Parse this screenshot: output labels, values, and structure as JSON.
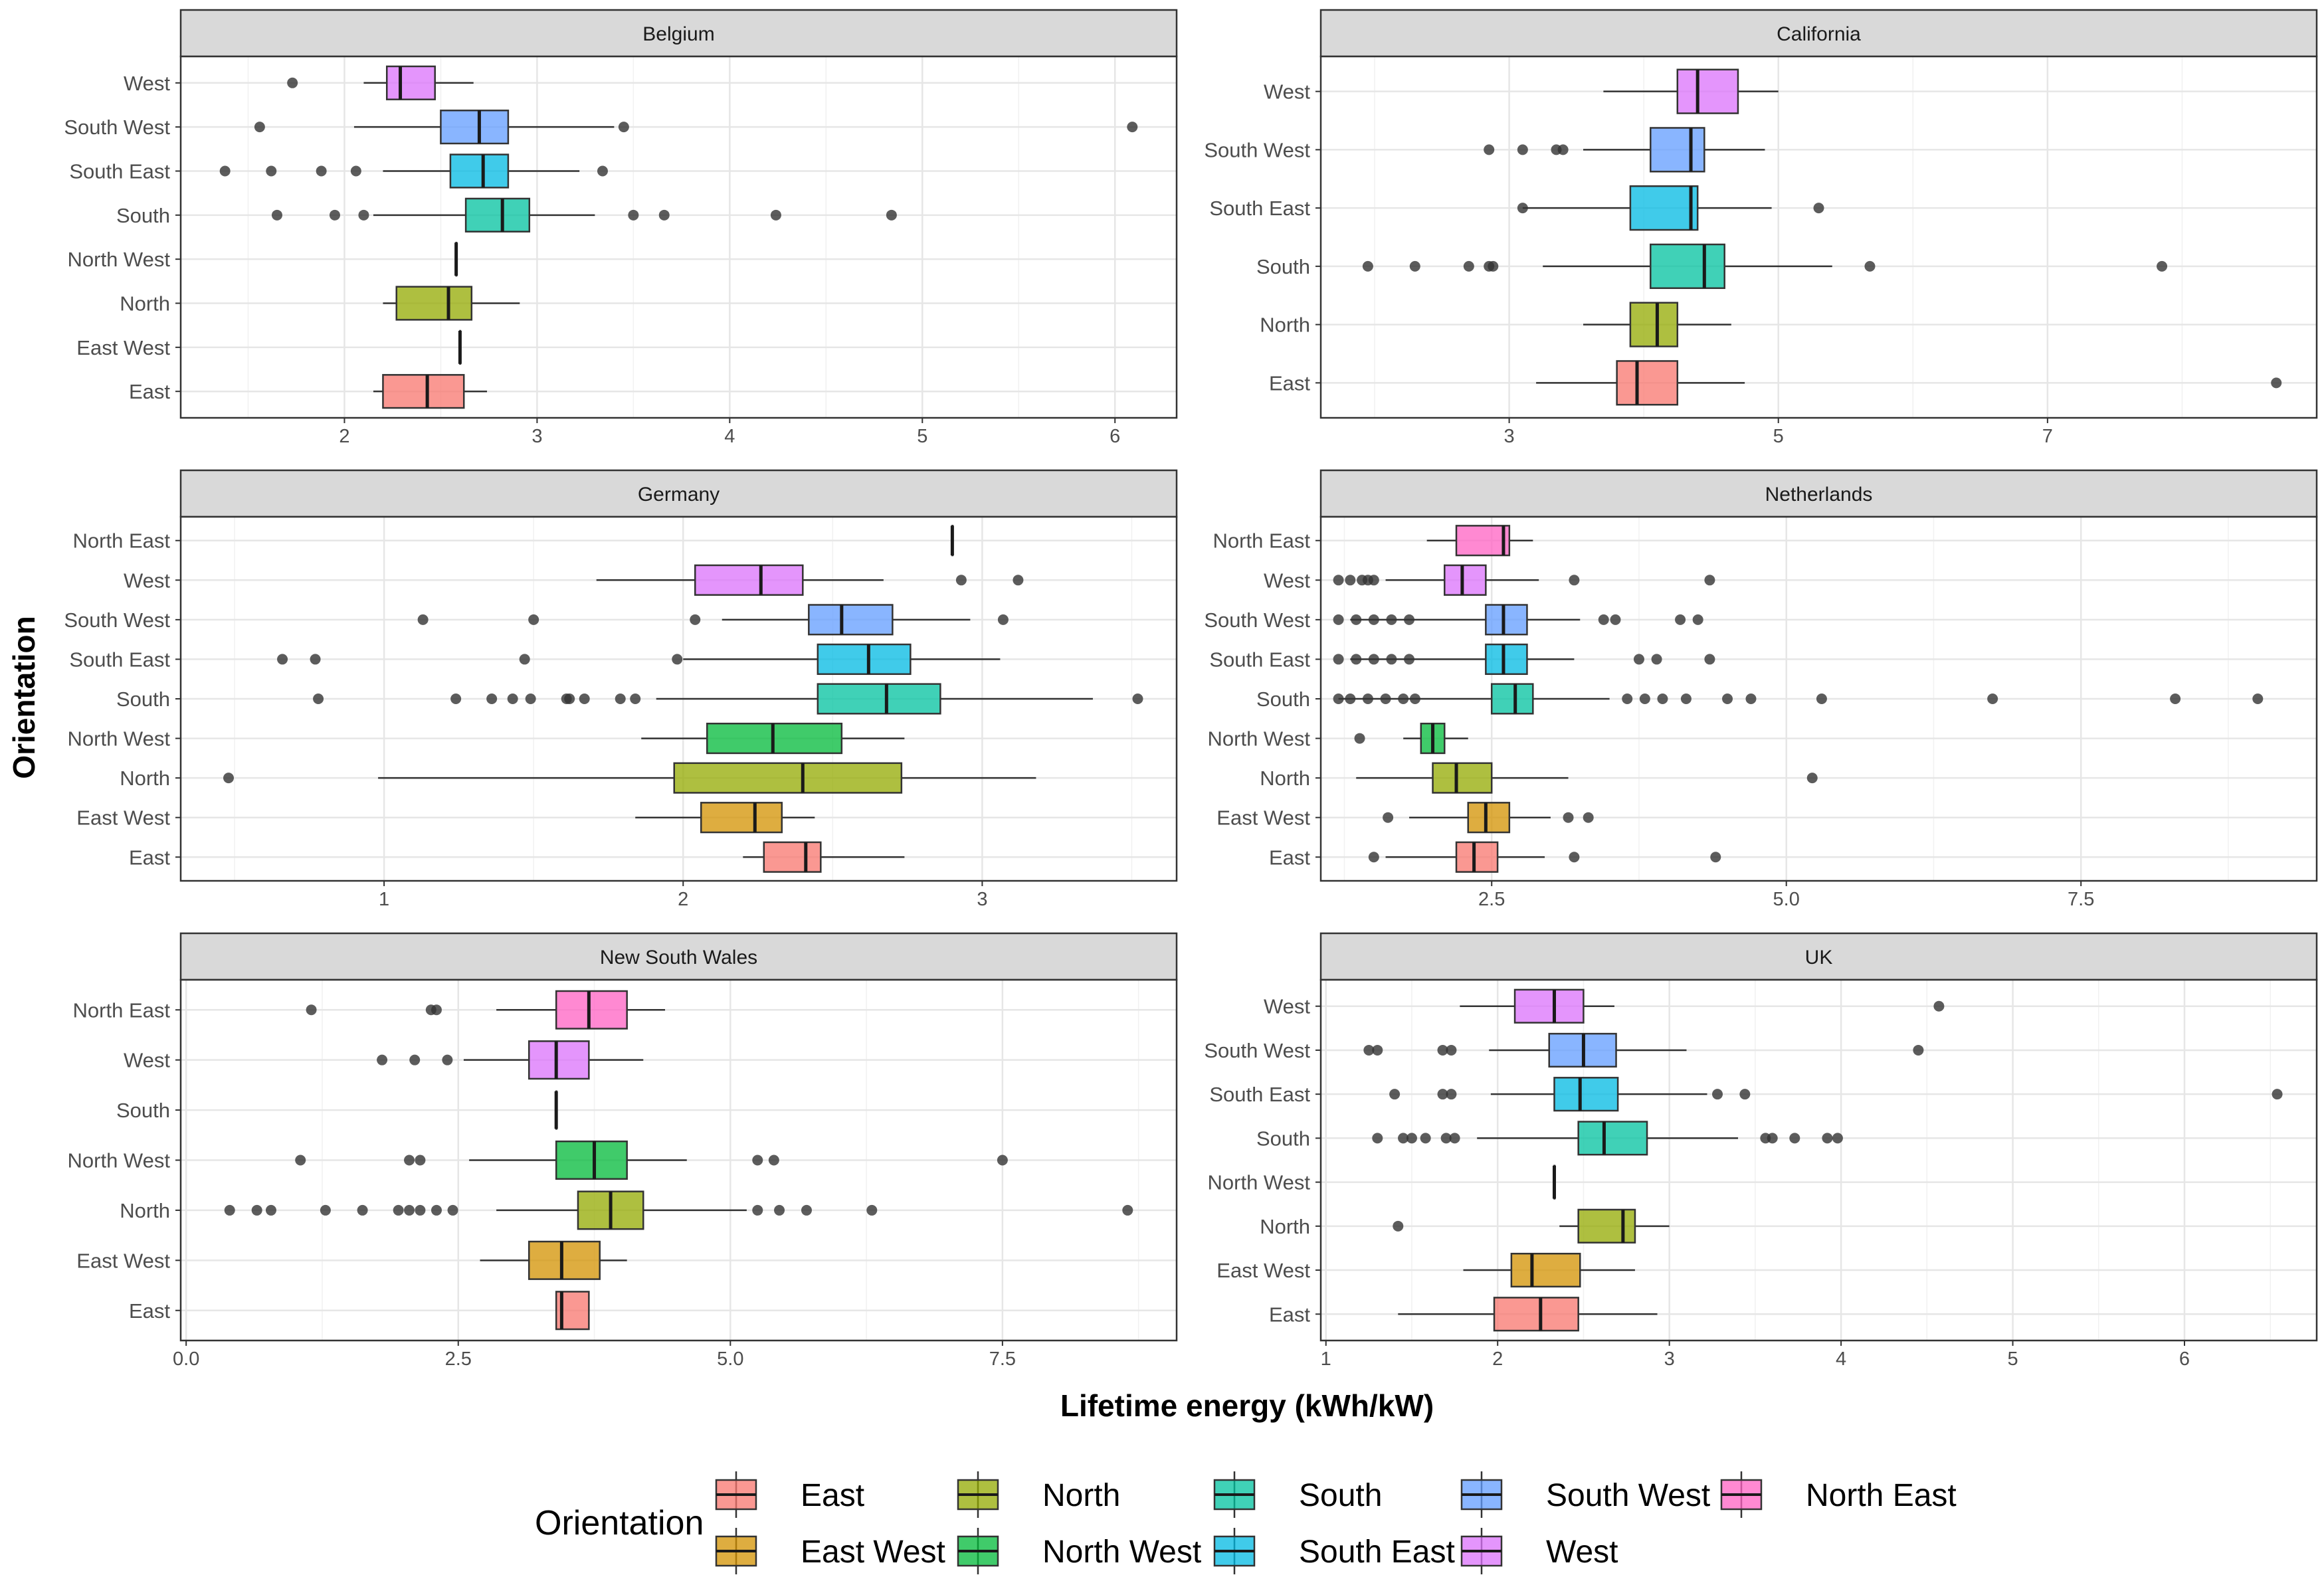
{
  "chart_data": {
    "type": "boxplot",
    "layout": "faceted horizontal boxplots, 3 rows x 2 columns, free x scales",
    "xlabel": "Lifetime energy (kWh/kW)",
    "ylabel": "Orientation",
    "grid": true,
    "legend": {
      "title": "Orientation",
      "placement": "bottom",
      "entries": [
        {
          "name": "East",
          "color": "#F8766D"
        },
        {
          "name": "East West",
          "color": "#D39200"
        },
        {
          "name": "North",
          "color": "#93AA00"
        },
        {
          "name": "North West",
          "color": "#00BA38"
        },
        {
          "name": "South",
          "color": "#00C19F"
        },
        {
          "name": "South East",
          "color": "#00B9E3"
        },
        {
          "name": "South West",
          "color": "#619CFF"
        },
        {
          "name": "West",
          "color": "#DB72FB"
        },
        {
          "name": "North East",
          "color": "#FF61C3"
        }
      ]
    },
    "panels": [
      {
        "title": "Belgium",
        "xlim": [
          1.15,
          6.32
        ],
        "xticks": [
          {
            "v": 2,
            "label": "2"
          },
          {
            "v": 3,
            "label": "3"
          },
          {
            "v": 4,
            "label": "4"
          },
          {
            "v": 5,
            "label": "5"
          },
          {
            "v": 6,
            "label": "6"
          }
        ],
        "boxes": [
          {
            "category": "East",
            "whisker_low": 2.15,
            "q1": 2.2,
            "median": 2.43,
            "q3": 2.62,
            "whisker_high": 2.74,
            "outliers": []
          },
          {
            "category": "East West",
            "whisker_low": 2.6,
            "q1": 2.6,
            "median": 2.6,
            "q3": 2.6,
            "whisker_high": 2.6,
            "outliers": []
          },
          {
            "category": "North",
            "whisker_low": 2.2,
            "q1": 2.27,
            "median": 2.54,
            "q3": 2.66,
            "whisker_high": 2.91,
            "outliers": []
          },
          {
            "category": "North West",
            "whisker_low": 2.58,
            "q1": 2.58,
            "median": 2.58,
            "q3": 2.58,
            "whisker_high": 2.58,
            "outliers": []
          },
          {
            "category": "South",
            "whisker_low": 2.15,
            "q1": 2.63,
            "median": 2.82,
            "q3": 2.96,
            "whisker_high": 3.3,
            "outliers": [
              1.65,
              1.95,
              2.1,
              3.5,
              3.66,
              4.24,
              4.84
            ]
          },
          {
            "category": "South East",
            "whisker_low": 2.2,
            "q1": 2.55,
            "median": 2.72,
            "q3": 2.85,
            "whisker_high": 3.22,
            "outliers": [
              1.38,
              1.62,
              1.88,
              2.06,
              3.34
            ]
          },
          {
            "category": "South West",
            "whisker_low": 2.05,
            "q1": 2.5,
            "median": 2.7,
            "q3": 2.85,
            "whisker_high": 3.4,
            "outliers": [
              1.56,
              3.45,
              6.09
            ]
          },
          {
            "category": "West",
            "whisker_low": 2.1,
            "q1": 2.22,
            "median": 2.29,
            "q3": 2.47,
            "whisker_high": 2.67,
            "outliers": [
              1.73
            ]
          }
        ]
      },
      {
        "title": "California",
        "xlim": [
          1.6,
          9.0
        ],
        "xticks": [
          {
            "v": 3,
            "label": "3"
          },
          {
            "v": 5,
            "label": "5"
          },
          {
            "v": 7,
            "label": "7"
          }
        ],
        "boxes": [
          {
            "category": "East",
            "whisker_low": 3.2,
            "q1": 3.8,
            "median": 3.95,
            "q3": 4.25,
            "whisker_high": 4.75,
            "outliers": [
              8.7
            ]
          },
          {
            "category": "North",
            "whisker_low": 3.55,
            "q1": 3.9,
            "median": 4.1,
            "q3": 4.25,
            "whisker_high": 4.65,
            "outliers": []
          },
          {
            "category": "South",
            "whisker_low": 3.25,
            "q1": 4.05,
            "median": 4.45,
            "q3": 4.6,
            "whisker_high": 5.4,
            "outliers": [
              1.95,
              2.3,
              2.7,
              2.85,
              2.88,
              5.68,
              7.85
            ]
          },
          {
            "category": "South East",
            "whisker_low": 3.1,
            "q1": 3.9,
            "median": 4.35,
            "q3": 4.4,
            "whisker_high": 4.95,
            "outliers": [
              3.1,
              5.3
            ]
          },
          {
            "category": "South West",
            "whisker_low": 3.55,
            "q1": 4.05,
            "median": 4.35,
            "q3": 4.45,
            "whisker_high": 4.9,
            "outliers": [
              2.85,
              3.1,
              3.35,
              3.4
            ]
          },
          {
            "category": "West",
            "whisker_low": 3.7,
            "q1": 4.25,
            "median": 4.4,
            "q3": 4.7,
            "whisker_high": 5.0,
            "outliers": []
          }
        ]
      },
      {
        "title": "Germany",
        "xlim": [
          0.32,
          3.65
        ],
        "xticks": [
          {
            "v": 1,
            "label": "1"
          },
          {
            "v": 2,
            "label": "2"
          },
          {
            "v": 3,
            "label": "3"
          }
        ],
        "boxes": [
          {
            "category": "East",
            "whisker_low": 2.2,
            "q1": 2.27,
            "median": 2.41,
            "q3": 2.46,
            "whisker_high": 2.74,
            "outliers": []
          },
          {
            "category": "East West",
            "whisker_low": 1.84,
            "q1": 2.06,
            "median": 2.24,
            "q3": 2.33,
            "whisker_high": 2.44,
            "outliers": []
          },
          {
            "category": "North",
            "whisker_low": 0.98,
            "q1": 1.97,
            "median": 2.4,
            "q3": 2.73,
            "whisker_high": 3.18,
            "outliers": [
              0.48
            ]
          },
          {
            "category": "North West",
            "whisker_low": 1.86,
            "q1": 2.08,
            "median": 2.3,
            "q3": 2.53,
            "whisker_high": 2.74,
            "outliers": []
          },
          {
            "category": "South",
            "whisker_low": 1.91,
            "q1": 2.45,
            "median": 2.68,
            "q3": 2.86,
            "whisker_high": 3.37,
            "outliers": [
              0.78,
              1.24,
              1.36,
              1.43,
              1.49,
              1.61,
              1.62,
              1.67,
              1.79,
              1.84,
              3.52
            ]
          },
          {
            "category": "South East",
            "whisker_low": 2.0,
            "q1": 2.45,
            "median": 2.62,
            "q3": 2.76,
            "whisker_high": 3.06,
            "outliers": [
              0.66,
              0.77,
              1.47,
              1.98
            ]
          },
          {
            "category": "South West",
            "whisker_low": 2.13,
            "q1": 2.42,
            "median": 2.53,
            "q3": 2.7,
            "whisker_high": 2.96,
            "outliers": [
              1.13,
              1.5,
              2.04,
              3.07
            ]
          },
          {
            "category": "West",
            "whisker_low": 1.71,
            "q1": 2.04,
            "median": 2.26,
            "q3": 2.4,
            "whisker_high": 2.67,
            "outliers": [
              2.93,
              3.12
            ]
          },
          {
            "category": "North East",
            "whisker_low": 2.9,
            "q1": 2.9,
            "median": 2.9,
            "q3": 2.9,
            "whisker_high": 2.9,
            "outliers": []
          }
        ]
      },
      {
        "title": "Netherlands",
        "xlim": [
          1.05,
          9.5
        ],
        "xticks": [
          {
            "v": 2.5,
            "label": "2.5"
          },
          {
            "v": 5.0,
            "label": "5.0"
          },
          {
            "v": 7.5,
            "label": "7.5"
          }
        ],
        "boxes": [
          {
            "category": "East",
            "whisker_low": 1.6,
            "q1": 2.2,
            "median": 2.35,
            "q3": 2.55,
            "whisker_high": 2.95,
            "outliers": [
              1.5,
              3.2,
              4.4
            ]
          },
          {
            "category": "East West",
            "whisker_low": 1.8,
            "q1": 2.3,
            "median": 2.45,
            "q3": 2.65,
            "whisker_high": 3.0,
            "outliers": [
              1.62,
              3.15,
              3.32
            ]
          },
          {
            "category": "North",
            "whisker_low": 1.35,
            "q1": 2.0,
            "median": 2.2,
            "q3": 2.5,
            "whisker_high": 3.15,
            "outliers": [
              5.22
            ]
          },
          {
            "category": "North West",
            "whisker_low": 1.75,
            "q1": 1.9,
            "median": 2.0,
            "q3": 2.1,
            "whisker_high": 2.3,
            "outliers": [
              1.38
            ]
          },
          {
            "category": "South",
            "whisker_low": 1.2,
            "q1": 2.5,
            "median": 2.7,
            "q3": 2.85,
            "whisker_high": 3.5,
            "outliers": [
              1.2,
              1.3,
              1.45,
              1.6,
              1.75,
              1.85,
              3.65,
              3.8,
              3.95,
              4.15,
              4.5,
              4.7,
              5.3,
              6.75,
              8.3,
              9.0
            ]
          },
          {
            "category": "South East",
            "whisker_low": 1.3,
            "q1": 2.45,
            "median": 2.6,
            "q3": 2.8,
            "whisker_high": 3.2,
            "outliers": [
              1.2,
              1.35,
              1.5,
              1.65,
              1.8,
              3.75,
              3.9,
              4.35
            ]
          },
          {
            "category": "South West",
            "whisker_low": 1.3,
            "q1": 2.45,
            "median": 2.6,
            "q3": 2.8,
            "whisker_high": 3.25,
            "outliers": [
              1.2,
              1.35,
              1.5,
              1.65,
              1.8,
              3.45,
              3.55,
              4.1,
              4.25
            ]
          },
          {
            "category": "West",
            "whisker_low": 1.6,
            "q1": 2.1,
            "median": 2.25,
            "q3": 2.45,
            "whisker_high": 2.9,
            "outliers": [
              1.2,
              1.3,
              1.4,
              1.45,
              1.5,
              3.2,
              4.35
            ]
          },
          {
            "category": "North East",
            "whisker_low": 1.95,
            "q1": 2.2,
            "median": 2.6,
            "q3": 2.65,
            "whisker_high": 2.85,
            "outliers": []
          }
        ]
      },
      {
        "title": "New South Wales",
        "xlim": [
          -0.05,
          9.1
        ],
        "xticks": [
          {
            "v": 0.0,
            "label": "0.0"
          },
          {
            "v": 2.5,
            "label": "2.5"
          },
          {
            "v": 5.0,
            "label": "5.0"
          },
          {
            "v": 7.5,
            "label": "7.5"
          }
        ],
        "boxes": [
          {
            "category": "East",
            "whisker_low": 3.4,
            "q1": 3.4,
            "median": 3.45,
            "q3": 3.7,
            "whisker_high": 3.7,
            "outliers": []
          },
          {
            "category": "East West",
            "whisker_low": 2.7,
            "q1": 3.15,
            "median": 3.45,
            "q3": 3.8,
            "whisker_high": 4.05,
            "outliers": []
          },
          {
            "category": "North",
            "whisker_low": 2.85,
            "q1": 3.6,
            "median": 3.9,
            "q3": 4.2,
            "whisker_high": 5.15,
            "outliers": [
              0.4,
              0.65,
              0.78,
              1.28,
              1.62,
              1.95,
              2.05,
              2.15,
              2.3,
              2.45,
              5.25,
              5.45,
              5.7,
              6.3,
              8.65
            ]
          },
          {
            "category": "North West",
            "whisker_low": 2.6,
            "q1": 3.4,
            "median": 3.75,
            "q3": 4.05,
            "whisker_high": 4.6,
            "outliers": [
              1.05,
              2.05,
              2.15,
              5.25,
              5.4,
              7.5
            ]
          },
          {
            "category": "South",
            "whisker_low": 3.4,
            "q1": 3.4,
            "median": 3.4,
            "q3": 3.4,
            "whisker_high": 3.4,
            "outliers": []
          },
          {
            "category": "West",
            "whisker_low": 2.55,
            "q1": 3.15,
            "median": 3.4,
            "q3": 3.7,
            "whisker_high": 4.2,
            "outliers": [
              1.8,
              2.1,
              2.4
            ]
          },
          {
            "category": "North East",
            "whisker_low": 2.85,
            "q1": 3.4,
            "median": 3.7,
            "q3": 4.05,
            "whisker_high": 4.4,
            "outliers": [
              1.15,
              2.25,
              2.3
            ]
          }
        ]
      },
      {
        "title": "UK",
        "xlim": [
          0.97,
          6.77
        ],
        "xticks": [
          {
            "v": 1,
            "label": "1"
          },
          {
            "v": 2,
            "label": "2"
          },
          {
            "v": 3,
            "label": "3"
          },
          {
            "v": 4,
            "label": "4"
          },
          {
            "v": 5,
            "label": "5"
          },
          {
            "v": 6,
            "label": "6"
          }
        ],
        "boxes": [
          {
            "category": "East",
            "whisker_low": 1.42,
            "q1": 1.98,
            "median": 2.25,
            "q3": 2.47,
            "whisker_high": 2.93,
            "outliers": []
          },
          {
            "category": "East West",
            "whisker_low": 1.8,
            "q1": 2.08,
            "median": 2.2,
            "q3": 2.48,
            "whisker_high": 2.8,
            "outliers": []
          },
          {
            "category": "North",
            "whisker_low": 2.36,
            "q1": 2.47,
            "median": 2.73,
            "q3": 2.8,
            "whisker_high": 3.0,
            "outliers": [
              1.42
            ]
          },
          {
            "category": "North West",
            "whisker_low": 2.33,
            "q1": 2.33,
            "median": 2.33,
            "q3": 2.33,
            "whisker_high": 2.33,
            "outliers": []
          },
          {
            "category": "South",
            "whisker_low": 1.88,
            "q1": 2.47,
            "median": 2.62,
            "q3": 2.87,
            "whisker_high": 3.4,
            "outliers": [
              1.3,
              1.45,
              1.5,
              1.58,
              1.7,
              1.75,
              3.56,
              3.6,
              3.73,
              3.92,
              3.98
            ]
          },
          {
            "category": "South East",
            "whisker_low": 1.96,
            "q1": 2.33,
            "median": 2.48,
            "q3": 2.7,
            "whisker_high": 3.22,
            "outliers": [
              1.4,
              1.68,
              1.73,
              3.28,
              3.44,
              6.54
            ]
          },
          {
            "category": "South West",
            "whisker_low": 1.95,
            "q1": 2.3,
            "median": 2.5,
            "q3": 2.69,
            "whisker_high": 3.1,
            "outliers": [
              1.25,
              1.3,
              1.68,
              1.73,
              4.45
            ]
          },
          {
            "category": "West",
            "whisker_low": 1.78,
            "q1": 2.1,
            "median": 2.33,
            "q3": 2.5,
            "whisker_high": 2.68,
            "outliers": [
              4.57
            ]
          }
        ]
      }
    ]
  }
}
